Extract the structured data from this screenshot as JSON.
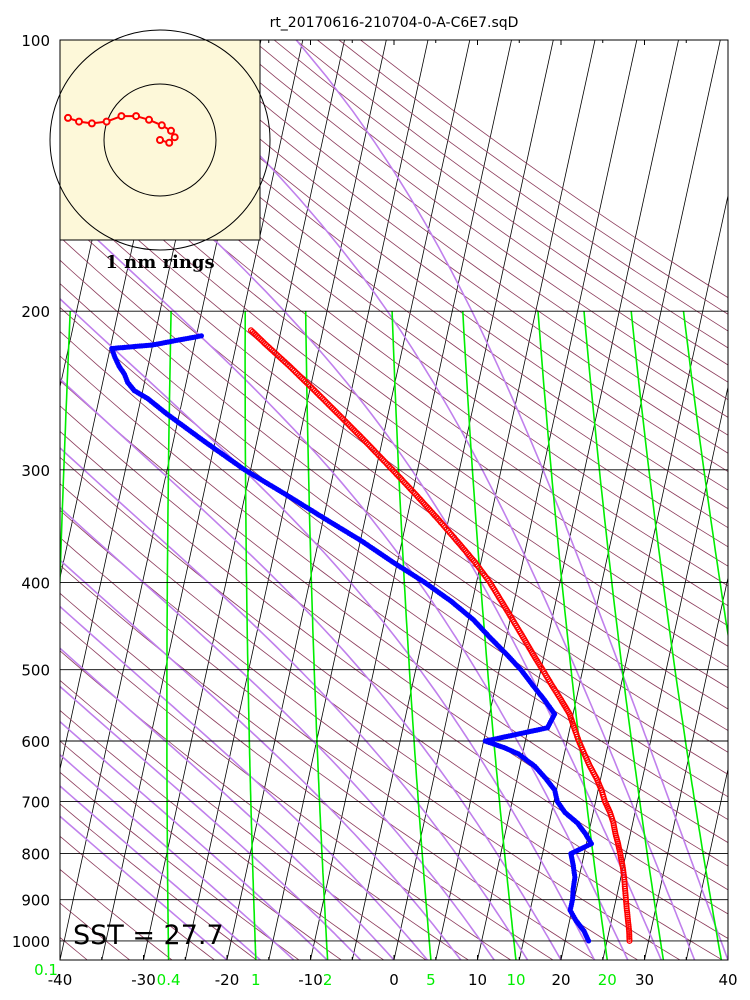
{
  "chart_data": {
    "type": "skew-t",
    "title": "rt_20170616-210704-0-A-C6E7.sqD",
    "x_ticks": [
      -40,
      -30,
      -20,
      -10,
      0,
      10,
      20,
      30,
      40
    ],
    "xlim": [
      -40,
      40
    ],
    "ylim": [
      1050,
      100
    ],
    "y_scale": "log",
    "pressure_ticks": [
      100,
      200,
      300,
      400,
      500,
      600,
      700,
      800,
      900,
      1000
    ],
    "mixing_ratio_labels": [
      "0.1",
      "0.4",
      "1",
      "2",
      "5",
      "10",
      "20"
    ],
    "sst_label": "SST = 27.7",
    "inset": {
      "label": "1 nm rings",
      "background_color": "#fdf8d9",
      "track": [
        [
          0.0,
          0.0
        ],
        [
          0.1,
          -0.03
        ],
        [
          0.16,
          0.03
        ],
        [
          0.12,
          0.1
        ],
        [
          0.02,
          0.16
        ],
        [
          -0.12,
          0.22
        ],
        [
          -0.26,
          0.26
        ],
        [
          -0.42,
          0.26
        ],
        [
          -0.58,
          0.2
        ],
        [
          -0.74,
          0.18
        ],
        [
          -0.88,
          0.2
        ],
        [
          -1.0,
          0.24
        ]
      ]
    },
    "series": [
      {
        "name": "",
        "color": "#ff0000",
        "profile": [
          [
            1000,
            27.7
          ],
          [
            975,
            27.4
          ],
          [
            950,
            27.0
          ],
          [
            925,
            26.6
          ],
          [
            900,
            26.2
          ],
          [
            875,
            25.8
          ],
          [
            850,
            25.4
          ],
          [
            825,
            24.9
          ],
          [
            800,
            24.3
          ],
          [
            780,
            23.8
          ],
          [
            760,
            23.2
          ],
          [
            740,
            22.7
          ],
          [
            720,
            22.0
          ],
          [
            700,
            21.1
          ],
          [
            680,
            20.4
          ],
          [
            660,
            19.5
          ],
          [
            640,
            18.4
          ],
          [
            620,
            17.4
          ],
          [
            600,
            16.4
          ],
          [
            580,
            15.5
          ],
          [
            560,
            14.6
          ],
          [
            540,
            13.2
          ],
          [
            520,
            11.7
          ],
          [
            500,
            10.2
          ],
          [
            480,
            8.6
          ],
          [
            460,
            7.0
          ],
          [
            440,
            5.3
          ],
          [
            420,
            3.5
          ],
          [
            400,
            1.6
          ],
          [
            380,
            -0.7
          ],
          [
            360,
            -3.4
          ],
          [
            340,
            -6.3
          ],
          [
            320,
            -9.5
          ],
          [
            300,
            -13.0
          ],
          [
            280,
            -16.8
          ],
          [
            260,
            -21.0
          ],
          [
            245,
            -24.4
          ],
          [
            230,
            -28.1
          ],
          [
            218,
            -31.4
          ],
          [
            210,
            -33.6
          ]
        ]
      },
      {
        "name": "",
        "color": "#0000ff",
        "profile": [
          [
            1000,
            22.8
          ],
          [
            975,
            22.0
          ],
          [
            950,
            20.8
          ],
          [
            925,
            19.8
          ],
          [
            900,
            19.8
          ],
          [
            875,
            19.6
          ],
          [
            850,
            19.5
          ],
          [
            825,
            19.0
          ],
          [
            800,
            18.4
          ],
          [
            780,
            20.6
          ],
          [
            760,
            19.6
          ],
          [
            740,
            18.4
          ],
          [
            720,
            16.6
          ],
          [
            700,
            15.4
          ],
          [
            680,
            14.8
          ],
          [
            660,
            13.4
          ],
          [
            640,
            11.8
          ],
          [
            620,
            9.5
          ],
          [
            610,
            7.6
          ],
          [
            600,
            5.2
          ],
          [
            580,
            12.3
          ],
          [
            560,
            12.8
          ],
          [
            540,
            11.2
          ],
          [
            520,
            9.4
          ],
          [
            500,
            7.6
          ],
          [
            480,
            5.4
          ],
          [
            460,
            3.0
          ],
          [
            440,
            0.6
          ],
          [
            420,
            -2.5
          ],
          [
            400,
            -6.2
          ],
          [
            380,
            -10.5
          ],
          [
            360,
            -14.8
          ],
          [
            340,
            -19.8
          ],
          [
            320,
            -25.0
          ],
          [
            300,
            -30.7
          ],
          [
            280,
            -36.0
          ],
          [
            260,
            -41.5
          ],
          [
            250,
            -44.2
          ],
          [
            245,
            -46.0
          ],
          [
            240,
            -47.0
          ],
          [
            235,
            -47.6
          ],
          [
            230,
            -48.5
          ],
          [
            225,
            -49.2
          ],
          [
            220,
            -49.8
          ],
          [
            218,
            -45.0
          ],
          [
            215,
            -41.7
          ],
          [
            213,
            -39.4
          ]
        ]
      }
    ]
  }
}
